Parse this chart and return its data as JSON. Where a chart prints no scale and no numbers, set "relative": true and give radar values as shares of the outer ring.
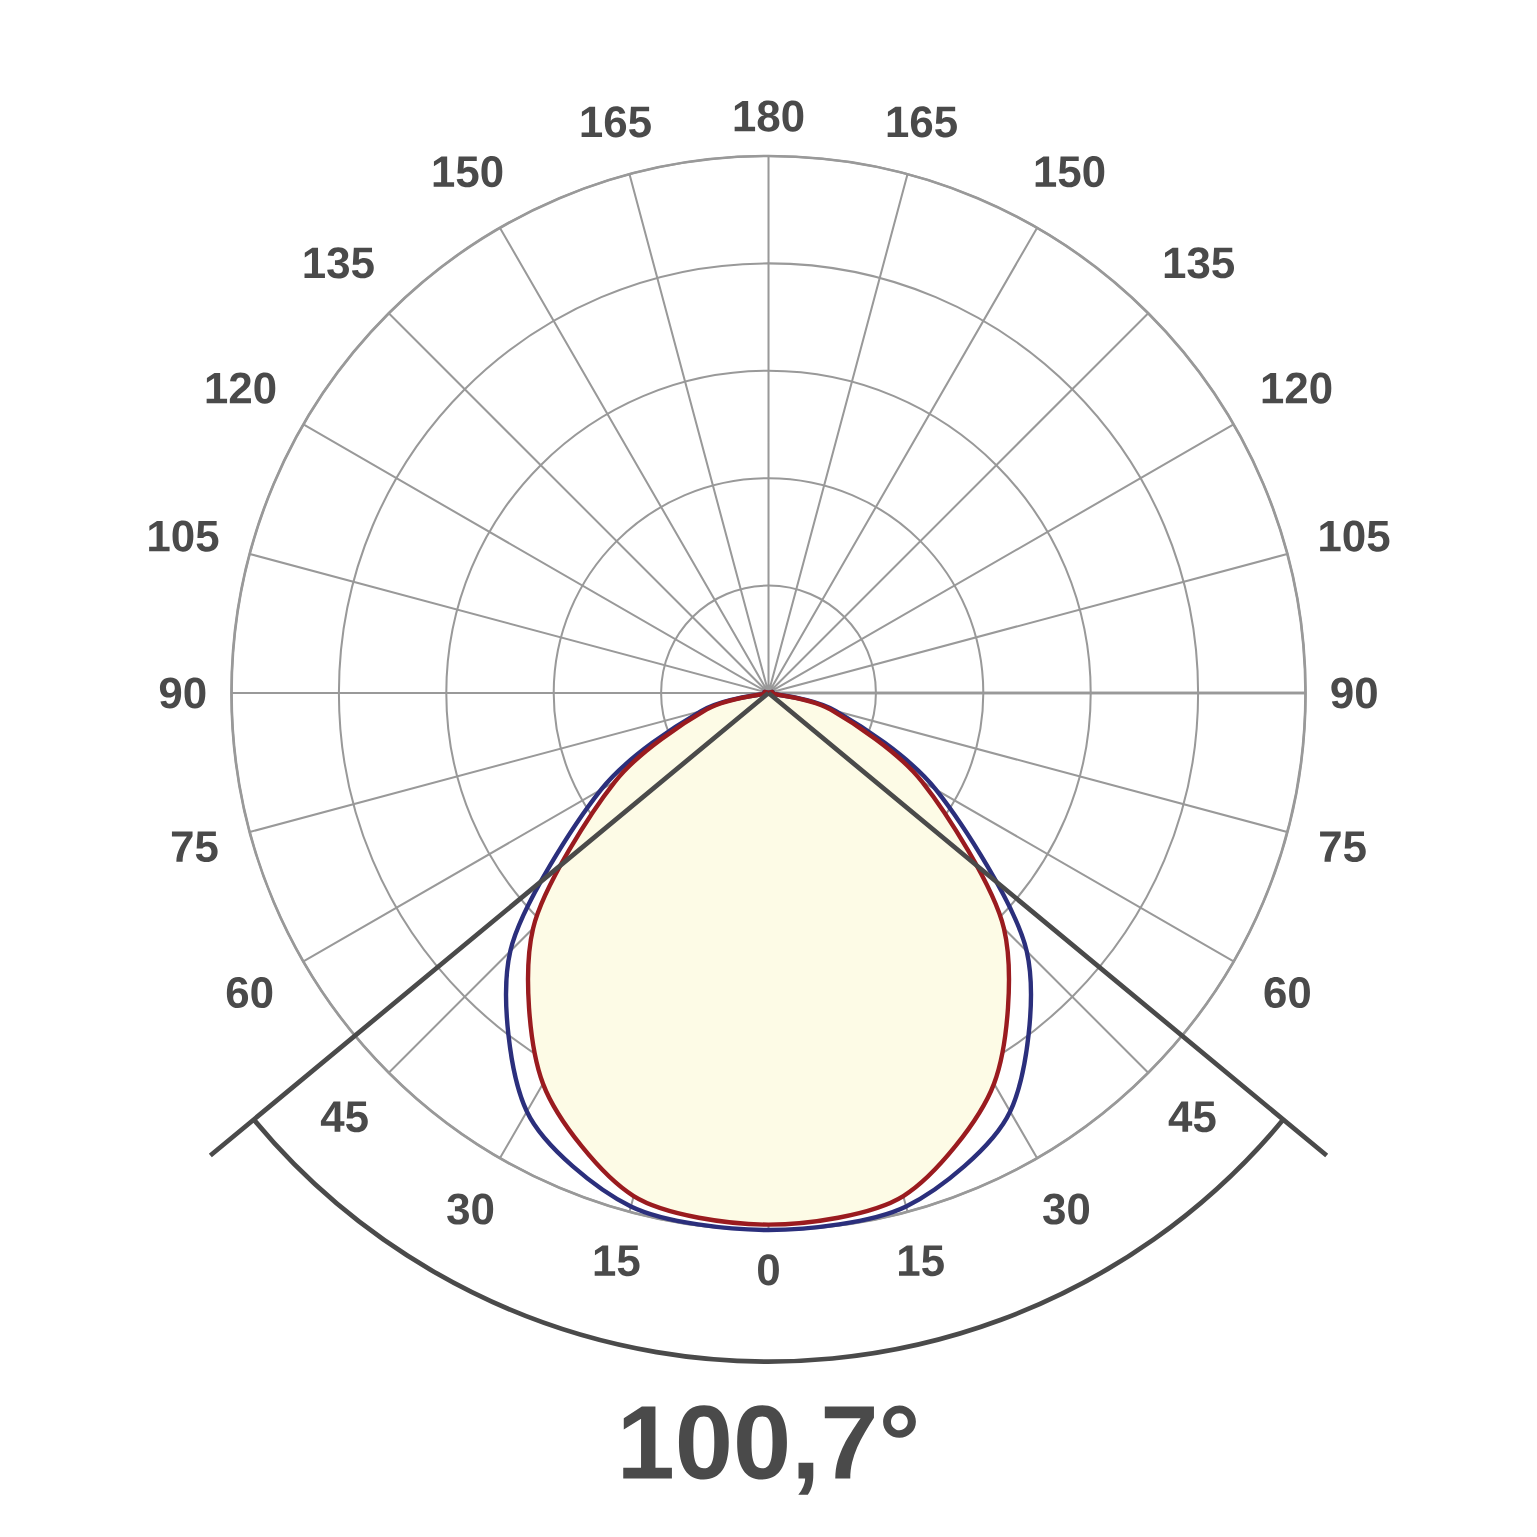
{
  "chart_data": {
    "type": "radar",
    "relative": true,
    "grid": true,
    "categories": [
      "180",
      "165",
      "150",
      "135",
      "120",
      "105",
      "90",
      "75",
      "60",
      "45",
      "30",
      "15",
      "0",
      "15",
      "30",
      "45",
      "60",
      "75",
      "90",
      "105",
      "120",
      "135",
      "150",
      "165"
    ],
    "series": [
      {
        "color": "#2b2f7c",
        "values": [
          0,
          0,
          0,
          0,
          0,
          0,
          0,
          0.13,
          0.36,
          0.68,
          0.9,
          0.99,
          1.0,
          0.99,
          0.9,
          0.68,
          0.36,
          0.13,
          0,
          0,
          0,
          0,
          0,
          0
        ]
      },
      {
        "color": "#9a1b1f",
        "values": [
          0,
          0,
          0,
          0,
          0,
          0,
          0,
          0.12,
          0.33,
          0.62,
          0.84,
          0.97,
          0.99,
          0.97,
          0.84,
          0.62,
          0.33,
          0.12,
          0,
          0,
          0,
          0,
          0,
          0
        ]
      }
    ],
    "annotations": [
      "100,7°"
    ]
  }
}
